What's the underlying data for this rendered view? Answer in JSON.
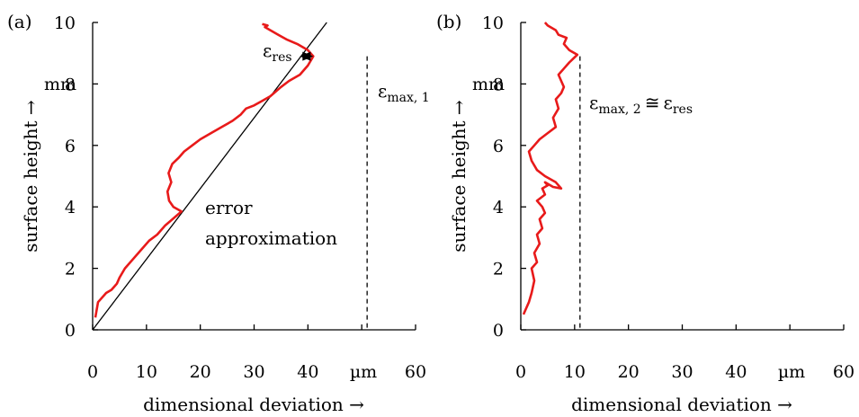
{
  "chart_data": [
    {
      "panel": "(a)",
      "type": "line",
      "xlabel": "dimensional deviation →",
      "ylabel": "surface height →",
      "x_unit": "µm",
      "y_unit": "mm",
      "xlim": [
        0,
        60
      ],
      "ylim": [
        0,
        10
      ],
      "x_ticks": [
        "0",
        "10",
        "20",
        "30",
        "40",
        "",
        "60"
      ],
      "y_ticks": [
        "0",
        "2",
        "4",
        "6",
        "8",
        "10"
      ],
      "grid": false,
      "colors": {
        "profile": "#e81a1a",
        "approximation": "#000000"
      },
      "series": [
        {
          "kind": "profile",
          "x": [
            0.5,
            1.0,
            1.5,
            2.5,
            3.5,
            4.5,
            5.0,
            6.0,
            7.5,
            9.0,
            10.5,
            12.0,
            13.5,
            14.5,
            15.5,
            16.5,
            15.0,
            14.2,
            13.9,
            14.6,
            14.1,
            14.8,
            16.0,
            17.0,
            18.5,
            20.0,
            22.0,
            24.0,
            26.0,
            27.5,
            28.5,
            30.0,
            31.5,
            33.0,
            35.0,
            36.5,
            38.5,
            40.0,
            41.0,
            40.0,
            38.0,
            36.0,
            34.5,
            33.0,
            32.0,
            32.5,
            31.5
          ],
          "y": [
            0.4,
            0.9,
            1.0,
            1.2,
            1.3,
            1.5,
            1.7,
            2.0,
            2.3,
            2.6,
            2.9,
            3.1,
            3.4,
            3.55,
            3.7,
            3.85,
            4.0,
            4.2,
            4.5,
            4.8,
            5.1,
            5.4,
            5.6,
            5.8,
            6.0,
            6.2,
            6.4,
            6.6,
            6.8,
            7.0,
            7.2,
            7.3,
            7.45,
            7.6,
            7.9,
            8.1,
            8.3,
            8.6,
            8.9,
            9.1,
            9.3,
            9.45,
            9.6,
            9.75,
            9.85,
            9.9,
            9.95
          ]
        },
        {
          "kind": "approximation",
          "x": [
            0,
            43.5
          ],
          "y": [
            0,
            10
          ]
        }
      ],
      "annotations": {
        "error_line1": "error",
        "error_line2": "approximation",
        "eps_res_base": "ε",
        "eps_res_sub": "res",
        "eps_max_base": "ε",
        "eps_max_sub": "max, 1",
        "eps_res_arrow_x": [
          38.5,
          41.0
        ],
        "eps_res_arrow_y": 8.9,
        "eps_max_x": 51,
        "eps_max_y": 8.9
      }
    },
    {
      "panel": "(b)",
      "type": "line",
      "xlabel": "dimensional deviation →",
      "ylabel": "surface height →",
      "x_unit": "µm",
      "y_unit": "mm",
      "xlim": [
        0,
        60
      ],
      "ylim": [
        0,
        10
      ],
      "x_ticks": [
        "0",
        "10",
        "20",
        "30",
        "40",
        "",
        "60"
      ],
      "y_ticks": [
        "0",
        "2",
        "4",
        "6",
        "8",
        "10"
      ],
      "grid": false,
      "colors": {
        "profile": "#e81a1a"
      },
      "series": [
        {
          "kind": "profile",
          "x": [
            0.5,
            1.5,
            2.0,
            2.5,
            2.0,
            3.0,
            2.5,
            3.5,
            3.0,
            4.0,
            3.5,
            4.5,
            4.0,
            3.0,
            4.5,
            4.0,
            5.0,
            4.5,
            5.5,
            6.0,
            7.5,
            6.5,
            4.5,
            3.0,
            2.0,
            1.5,
            2.5,
            3.5,
            5.0,
            6.5,
            6.0,
            7.0,
            6.5,
            7.5,
            8.0,
            7.5,
            7.0,
            8.0,
            9.0,
            10.5,
            9.0,
            8.0,
            8.5,
            7.0,
            6.5,
            5.0,
            4.5
          ],
          "y": [
            0.5,
            0.9,
            1.2,
            1.6,
            2.0,
            2.2,
            2.5,
            2.8,
            3.1,
            3.3,
            3.6,
            3.8,
            4.0,
            4.2,
            4.4,
            4.6,
            4.7,
            4.8,
            4.7,
            4.65,
            4.6,
            4.8,
            5.0,
            5.2,
            5.5,
            5.8,
            6.0,
            6.2,
            6.4,
            6.6,
            6.9,
            7.2,
            7.5,
            7.7,
            7.9,
            8.1,
            8.3,
            8.5,
            8.7,
            8.95,
            9.1,
            9.3,
            9.5,
            9.6,
            9.75,
            9.9,
            10.0
          ]
        }
      ],
      "annotations": {
        "eps_max_base": "ε",
        "eps_max_sub": "max, 2",
        "approx_equal": "≅",
        "eps_res_base": "ε",
        "eps_res_sub": "res",
        "eps_max_x": 11,
        "eps_max_y": 8.9
      }
    }
  ]
}
